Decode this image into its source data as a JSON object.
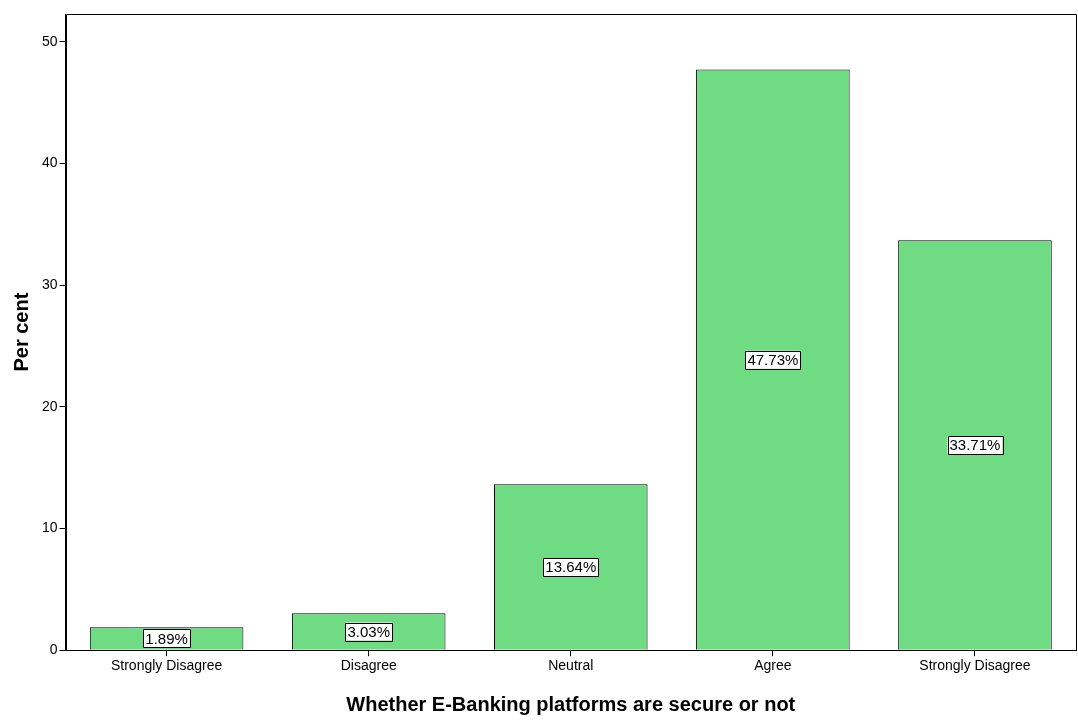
{
  "chart_data": {
    "type": "bar",
    "xlabel": "Whether E-Banking platforms are secure or not",
    "ylabel": "Per cent",
    "categories": [
      "Strongly Disagree",
      "Disagree",
      "Neutral",
      "Agree",
      "Strongly Disagree"
    ],
    "values": [
      1.89,
      3.03,
      13.64,
      47.73,
      33.71
    ],
    "color": "#6fdc84",
    "value_labels": [
      "1.89%",
      "3.03%",
      "13.64%",
      "47.73%",
      "33.71%"
    ],
    "ylim": [
      0,
      52.3
    ],
    "yticks": [
      0,
      10,
      20,
      30,
      40,
      50
    ],
    "grid": false,
    "legend": false
  }
}
